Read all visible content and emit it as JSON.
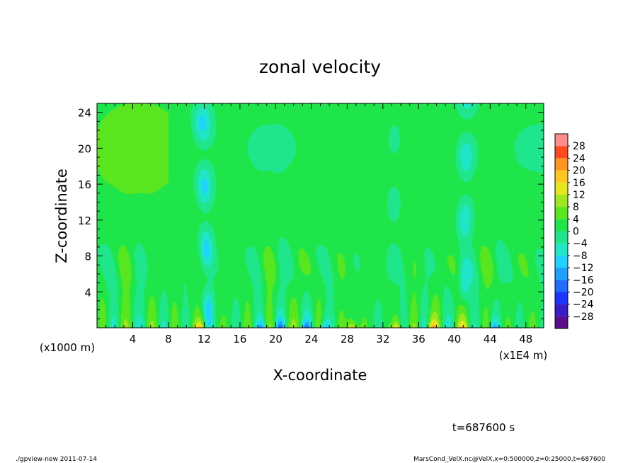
{
  "chart_data": {
    "type": "heatmap",
    "title": "zonal velocity",
    "xlabel": "X-coordinate",
    "ylabel": "Z-coordinate",
    "x_unit_note": "(x1E4 m)",
    "y_unit_note": "(x1000 m)",
    "xlim": [
      0,
      50
    ],
    "ylim": [
      0,
      25
    ],
    "x_ticks": [
      4,
      8,
      12,
      16,
      20,
      24,
      28,
      32,
      36,
      40,
      44,
      48
    ],
    "x_tick_labels": [
      "4",
      "8",
      "12",
      "16",
      "20",
      "24",
      "28",
      "32",
      "36",
      "40",
      "44",
      "48"
    ],
    "y_ticks": [
      4,
      8,
      12,
      16,
      20,
      24
    ],
    "y_tick_labels": [
      "4",
      "8",
      "12",
      "16",
      "20",
      "24"
    ],
    "colorbar": {
      "levels": [
        -32,
        -28,
        -24,
        -20,
        -16,
        -12,
        -8,
        -4,
        0,
        4,
        8,
        12,
        16,
        20,
        24,
        28,
        32
      ],
      "colors": [
        "#5a0f8c",
        "#3a1cc8",
        "#1f33ff",
        "#1f6cff",
        "#1fa0ff",
        "#1fd2ff",
        "#1fe6c8",
        "#1fe68c",
        "#1ee64a",
        "#5ae61e",
        "#a0e61e",
        "#e6e61e",
        "#ffc81e",
        "#ff961e",
        "#ff4b1e",
        "#ff8c8c"
      ],
      "labels": [
        "28",
        "24",
        "20",
        "16",
        "12",
        "8",
        "4",
        "0",
        "−4",
        "−8",
        "−12",
        "−16",
        "−20",
        "−24",
        "−28"
      ]
    },
    "cold_streaks": [
      {
        "x": 12.5,
        "strength": 1.0
      },
      {
        "x": 41.0,
        "strength": 0.85
      },
      {
        "x": 33.0,
        "strength": 0.45
      }
    ],
    "surface_warm_spots": [
      11.5,
      41.0,
      28.5,
      33.5,
      37.5
    ],
    "surface_cold_spots": [
      18.5,
      25.5,
      20.5,
      23.5,
      44.5
    ]
  },
  "annotations": {
    "time_label": "t=687600 s",
    "footer_left": "./gpview-new   2011-07-14",
    "footer_right": "MarsCond_VelX.nc@VelX,x=0:500000,z=0:25000,t=687600"
  }
}
